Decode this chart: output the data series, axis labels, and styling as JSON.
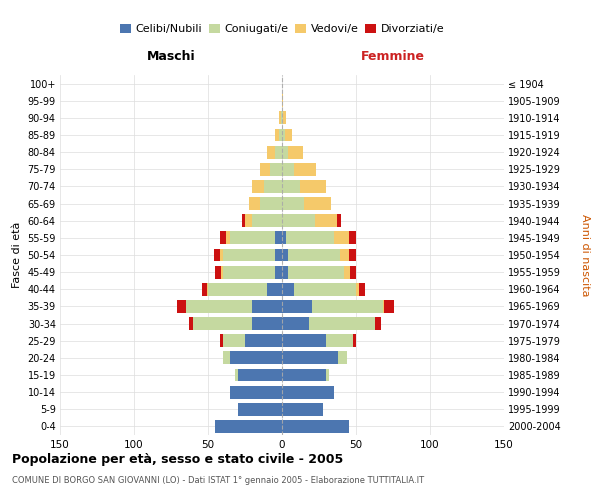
{
  "age_groups": [
    "0-4",
    "5-9",
    "10-14",
    "15-19",
    "20-24",
    "25-29",
    "30-34",
    "35-39",
    "40-44",
    "45-49",
    "50-54",
    "55-59",
    "60-64",
    "65-69",
    "70-74",
    "75-79",
    "80-84",
    "85-89",
    "90-94",
    "95-99",
    "100+"
  ],
  "birth_years": [
    "2000-2004",
    "1995-1999",
    "1990-1994",
    "1985-1989",
    "1980-1984",
    "1975-1979",
    "1970-1974",
    "1965-1969",
    "1960-1964",
    "1955-1959",
    "1950-1954",
    "1945-1949",
    "1940-1944",
    "1935-1939",
    "1930-1934",
    "1925-1929",
    "1920-1924",
    "1915-1919",
    "1910-1914",
    "1905-1909",
    "≤ 1904"
  ],
  "males": {
    "celibi": [
      45,
      30,
      35,
      30,
      35,
      25,
      20,
      20,
      10,
      5,
      5,
      5,
      0,
      0,
      0,
      0,
      0,
      0,
      0,
      0,
      0
    ],
    "coniugati": [
      0,
      0,
      0,
      2,
      5,
      15,
      40,
      45,
      40,
      35,
      35,
      30,
      20,
      15,
      12,
      8,
      5,
      2,
      1,
      0,
      0
    ],
    "vedovi": [
      0,
      0,
      0,
      0,
      0,
      0,
      0,
      0,
      1,
      1,
      2,
      3,
      5,
      7,
      8,
      7,
      5,
      3,
      1,
      0,
      0
    ],
    "divorziati": [
      0,
      0,
      0,
      0,
      0,
      2,
      3,
      6,
      3,
      4,
      4,
      4,
      2,
      0,
      0,
      0,
      0,
      0,
      0,
      0,
      0
    ]
  },
  "females": {
    "nubili": [
      45,
      28,
      35,
      30,
      38,
      30,
      18,
      20,
      8,
      4,
      4,
      3,
      0,
      0,
      0,
      0,
      0,
      0,
      0,
      0,
      0
    ],
    "coniugate": [
      0,
      0,
      0,
      2,
      6,
      18,
      45,
      48,
      42,
      38,
      35,
      32,
      22,
      15,
      12,
      8,
      4,
      2,
      1,
      0,
      0
    ],
    "vedove": [
      0,
      0,
      0,
      0,
      0,
      0,
      0,
      1,
      2,
      4,
      6,
      10,
      15,
      18,
      18,
      15,
      10,
      5,
      2,
      1,
      0
    ],
    "divorziate": [
      0,
      0,
      0,
      0,
      0,
      2,
      4,
      7,
      4,
      4,
      5,
      5,
      3,
      0,
      0,
      0,
      0,
      0,
      0,
      0,
      0
    ]
  },
  "color_celibi": "#4c76b0",
  "color_coniugati": "#c5d9a0",
  "color_vedovi": "#f5c96a",
  "color_divorziati": "#cc1111",
  "title": "Popolazione per età, sesso e stato civile - 2005",
  "subtitle": "COMUNE DI BORGO SAN GIOVANNI (LO) - Dati ISTAT 1° gennaio 2005 - Elaborazione TUTTITALIA.IT",
  "xlabel_left": "Maschi",
  "xlabel_right": "Femmine",
  "ylabel_left": "Fasce di età",
  "ylabel_right": "Anni di nascita",
  "xlim": 150,
  "bg_color": "#ffffff",
  "grid_color": "#dddddd",
  "legend_labels": [
    "Celibi/Nubili",
    "Coniugati/e",
    "Vedovi/e",
    "Divorziati/e"
  ]
}
